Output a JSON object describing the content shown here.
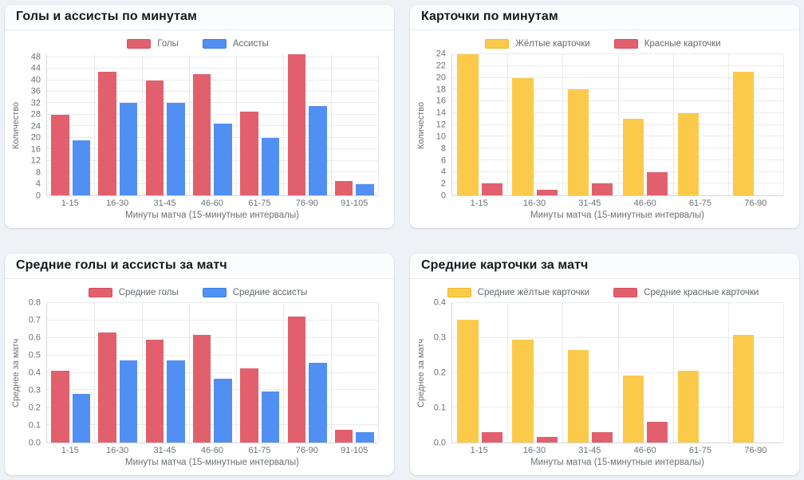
{
  "page": {
    "background": "#eef1f5",
    "card_background": "#ffffff",
    "text_muted": "#6b7076",
    "title_color": "#15191f",
    "grid_color": "#e9ebee",
    "axis_color": "#d4d7dc"
  },
  "chart_data": [
    {
      "type": "bar",
      "title": "Голы и ассисты по минутам",
      "categories": [
        "1-15",
        "16-30",
        "31-45",
        "46-60",
        "61-75",
        "76-90",
        "91-105"
      ],
      "series": [
        {
          "name": "Голы",
          "color": "#E2606D",
          "border": "#D44F5E",
          "values": [
            28,
            43,
            40,
            42,
            29,
            49,
            5
          ]
        },
        {
          "name": "Ассисты",
          "color": "#5190F2",
          "border": "#3B7DE6",
          "values": [
            19,
            32,
            32,
            25,
            20,
            31,
            4
          ]
        }
      ],
      "xlabel": "Минуты матча (15-минутные интервалы)",
      "ylabel": "Количество",
      "ylim": [
        0,
        49
      ],
      "yticks": [
        "0",
        "4",
        "8",
        "12",
        "16",
        "20",
        "24",
        "28",
        "32",
        "36",
        "40",
        "44",
        "48"
      ],
      "grid": true,
      "legend_position": "top"
    },
    {
      "type": "bar",
      "title": "Карточки по минутам",
      "categories": [
        "1-15",
        "16-30",
        "31-45",
        "46-60",
        "61-75",
        "76-90"
      ],
      "series": [
        {
          "name": "Жёлтые карточки",
          "color": "#FCCA4A",
          "border": "#EFB72B",
          "values": [
            24,
            20,
            18,
            13,
            14,
            21
          ]
        },
        {
          "name": "Красные карточки",
          "color": "#E2606D",
          "border": "#D44F5E",
          "values": [
            2,
            1,
            2,
            4,
            0,
            0
          ]
        }
      ],
      "xlabel": "Минуты матча (15-минутные интервалы)",
      "ylabel": "Количество",
      "ylim": [
        0,
        24
      ],
      "yticks": [
        "0",
        "2",
        "4",
        "6",
        "8",
        "10",
        "12",
        "14",
        "16",
        "18",
        "20",
        "22",
        "24"
      ],
      "grid": true,
      "legend_position": "top"
    },
    {
      "type": "bar",
      "title": "Средние голы и ассисты за матч",
      "categories": [
        "1-15",
        "16-30",
        "31-45",
        "46-60",
        "61-75",
        "76-90",
        "91-105"
      ],
      "series": [
        {
          "name": "Средние голы",
          "color": "#E2606D",
          "border": "#D44F5E",
          "values": [
            0.412,
            0.632,
            0.588,
            0.618,
            0.426,
            0.721,
            0.074
          ]
        },
        {
          "name": "Средние ассисты",
          "color": "#5190F2",
          "border": "#3B7DE6",
          "values": [
            0.279,
            0.471,
            0.471,
            0.368,
            0.294,
            0.456,
            0.059
          ]
        }
      ],
      "xlabel": "Минуты матча (15-минутные интервалы)",
      "ylabel": "Среднее за матч",
      "ylim": [
        0,
        0.8
      ],
      "yticks": [
        "0.0",
        "0.1",
        "0.2",
        "0.3",
        "0.4",
        "0.5",
        "0.6",
        "0.7",
        "0.8"
      ],
      "grid": true,
      "legend_position": "top"
    },
    {
      "type": "bar",
      "title": "Средние карточки за матч",
      "categories": [
        "1-15",
        "16-30",
        "31-45",
        "46-60",
        "61-75",
        "76-90"
      ],
      "series": [
        {
          "name": "Средние жёлтые карточки",
          "color": "#FCCA4A",
          "border": "#EFB72B",
          "values": [
            0.353,
            0.294,
            0.265,
            0.191,
            0.206,
            0.309
          ]
        },
        {
          "name": "Средние красные карточки",
          "color": "#E2606D",
          "border": "#D44F5E",
          "values": [
            0.029,
            0.015,
            0.029,
            0.059,
            0,
            0
          ]
        }
      ],
      "xlabel": "Минуты матча (15-минутные интервалы)",
      "ylabel": "Среднее за матч",
      "ylim": [
        0,
        0.4
      ],
      "yticks": [
        "0.0",
        "0.1",
        "0.2",
        "0.3",
        "0.4"
      ],
      "grid": true,
      "legend_position": "top"
    }
  ]
}
